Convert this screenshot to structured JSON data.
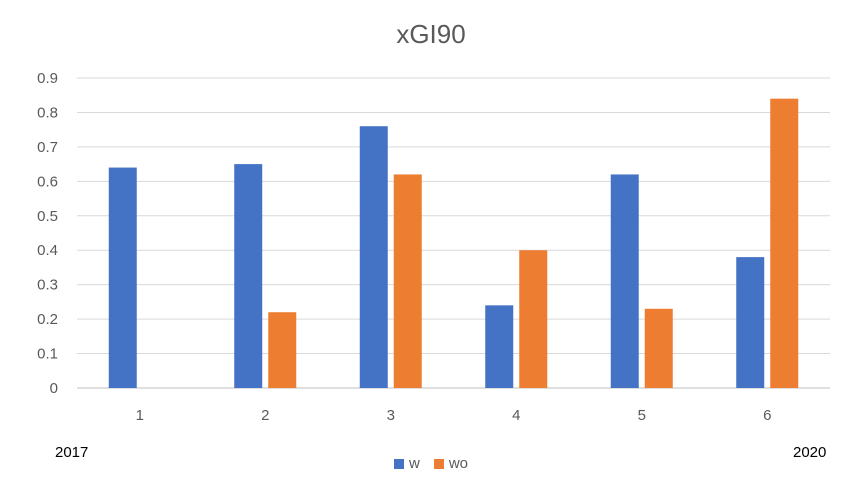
{
  "chart_data": {
    "type": "bar",
    "title": "xGI90",
    "categories": [
      "1",
      "2",
      "3",
      "4",
      "5",
      "6"
    ],
    "series": [
      {
        "name": "w",
        "color": "#4472C4",
        "values": [
          0.64,
          0.65,
          0.76,
          0.24,
          0.62,
          0.38
        ]
      },
      {
        "name": "wo",
        "color": "#ED7D31",
        "values": [
          0,
          0.22,
          0.62,
          0.4,
          0.23,
          0.84
        ]
      }
    ],
    "y_ticks": [
      "0",
      "0.1",
      "0.2",
      "0.3",
      "0.4",
      "0.5",
      "0.6",
      "0.7",
      "0.8",
      "0.9"
    ],
    "ylim": [
      0,
      0.9
    ],
    "grid": true,
    "legend_position": "bottom"
  },
  "annotations": {
    "left": "2017",
    "right": "2020"
  }
}
